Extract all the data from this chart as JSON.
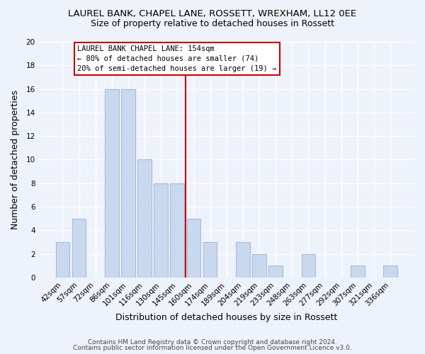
{
  "title": "LAUREL BANK, CHAPEL LANE, ROSSETT, WREXHAM, LL12 0EE",
  "subtitle": "Size of property relative to detached houses in Rossett",
  "xlabel": "Distribution of detached houses by size in Rossett",
  "ylabel": "Number of detached properties",
  "footer_line1": "Contains HM Land Registry data © Crown copyright and database right 2024.",
  "footer_line2": "Contains public sector information licensed under the Open Government Licence v3.0.",
  "bar_labels": [
    "42sqm",
    "57sqm",
    "72sqm",
    "86sqm",
    "101sqm",
    "116sqm",
    "130sqm",
    "145sqm",
    "160sqm",
    "174sqm",
    "189sqm",
    "204sqm",
    "219sqm",
    "233sqm",
    "248sqm",
    "263sqm",
    "277sqm",
    "292sqm",
    "307sqm",
    "321sqm",
    "336sqm"
  ],
  "bar_values": [
    3,
    5,
    0,
    16,
    16,
    10,
    8,
    8,
    5,
    3,
    0,
    3,
    2,
    1,
    0,
    2,
    0,
    0,
    1,
    0,
    1
  ],
  "bar_color": "#c8d8ee",
  "bar_edge_color": "#aabbd4",
  "vline_index": 8,
  "vline_color": "#cc0000",
  "ylim": [
    0,
    20
  ],
  "annotation_box_color": "white",
  "annotation_box_edge": "#cc0000",
  "annotation_title": "LAUREL BANK CHAPEL LANE: 154sqm",
  "annotation_line1": "← 80% of detached houses are smaller (74)",
  "annotation_line2": "20% of semi-detached houses are larger (19) →",
  "background_color": "#eef2fb",
  "grid_color": "white",
  "title_fontsize": 9.5,
  "subtitle_fontsize": 9.0,
  "tick_fontsize": 7.5,
  "axis_label_fontsize": 9.0,
  "footer_fontsize": 6.5
}
